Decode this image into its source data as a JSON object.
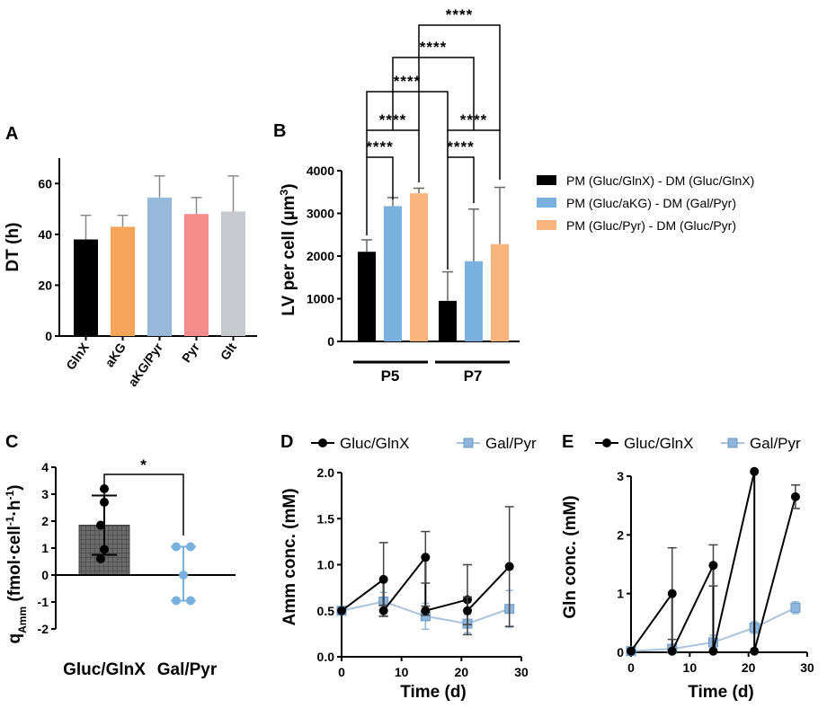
{
  "chart_data": [
    {
      "panel": "A",
      "type": "bar",
      "ylabel": "DT (h)",
      "ylim": [
        0,
        70
      ],
      "yticks": [
        0,
        20,
        40,
        60
      ],
      "categories": [
        "GlnX",
        "aKG",
        "aKG/Pyr",
        "Pyr",
        "Glt"
      ],
      "values": [
        38,
        43,
        54.5,
        48,
        49
      ],
      "errors": [
        9.5,
        4.5,
        8.5,
        6.5,
        14
      ],
      "colors": [
        "#000000",
        "#f5a55a",
        "#97b8d8",
        "#f48c8a",
        "#c6c9ce"
      ]
    },
    {
      "panel": "B",
      "type": "bar",
      "ylabel": "LV per cell (µm³)",
      "ylim": [
        0,
        4000
      ],
      "yticks": [
        0,
        1000,
        2000,
        3000,
        4000
      ],
      "groups": [
        "P5",
        "P7"
      ],
      "series": [
        {
          "name": "PM (Gluc/GlnX) - DM (Gluc/GlnX)",
          "color": "#000000",
          "values": [
            2100,
            950
          ],
          "errors": [
            280,
            680
          ]
        },
        {
          "name": "PM (Gluc/aKG) - DM (Gal/Pyr)",
          "color": "#7ab0dd",
          "values": [
            3170,
            1880
          ],
          "errors": [
            200,
            1220
          ]
        },
        {
          "name": "PM (Gluc/Pyr) - DM (Gluc/Pyr)",
          "color": "#f9b57c",
          "values": [
            3470,
            2280
          ],
          "errors": [
            120,
            1330
          ]
        }
      ],
      "significance": [
        {
          "pair": "P5 black vs P5 blue",
          "label": "****"
        },
        {
          "pair": "P5 black vs P5 orange",
          "label": "****"
        },
        {
          "pair": "P7 black vs P7 blue",
          "label": "****"
        },
        {
          "pair": "P7 black vs P7 orange",
          "label": "****"
        },
        {
          "pair": "P5 black vs P7 black",
          "label": "****"
        },
        {
          "pair": "P5 blue vs P7 blue",
          "label": "****"
        },
        {
          "pair": "P5 orange vs P7 orange",
          "label": "****"
        }
      ]
    },
    {
      "panel": "C",
      "type": "bar",
      "ylabel": "q",
      "ylabel_sub": "Amm",
      "ylabel_units": "(fmol·cell",
      "ylim": [
        -2,
        4
      ],
      "yticks": [
        -2,
        -1,
        0,
        1,
        2,
        3,
        4
      ],
      "categories": [
        "Gluc/GlnX",
        "Gal/Pyr"
      ],
      "means": [
        1.85,
        0.05
      ],
      "errors": [
        1.1,
        1.0
      ],
      "points": [
        [
          3.2,
          2.7,
          1.85,
          0.95,
          0.6
        ],
        [
          1.05,
          1.05,
          0.0,
          -0.95,
          -0.95
        ]
      ],
      "significance": "*"
    },
    {
      "panel": "D",
      "type": "line",
      "xlabel": "Time (d)",
      "ylabel": "Amm conc. (mM)",
      "xlim": [
        0,
        30
      ],
      "ylim": [
        0,
        2
      ],
      "xticks": [
        0,
        10,
        20,
        30
      ],
      "yticks": [
        0,
        0.5,
        1.0,
        1.5,
        2.0
      ],
      "series": [
        {
          "name": "Gluc/GlnX",
          "x": [
            0,
            7,
            7,
            14,
            14,
            21,
            21,
            28
          ],
          "y": [
            0.5,
            0.84,
            0.5,
            1.08,
            0.5,
            0.62,
            0.5,
            0.98
          ],
          "err": [
            0,
            0.4,
            0.06,
            0.28,
            0.05,
            0.38,
            0.15,
            0.65
          ]
        },
        {
          "name": "Gal/Pyr",
          "x": [
            0,
            7,
            14,
            21,
            28
          ],
          "y": [
            0.5,
            0.6,
            0.44,
            0.36,
            0.52
          ],
          "err": [
            0,
            0.1,
            0.14,
            0.1,
            0.2
          ]
        }
      ]
    },
    {
      "panel": "E",
      "type": "line",
      "xlabel": "Time (d)",
      "ylabel": "Gln conc. (mM)",
      "xlim": [
        0,
        30
      ],
      "ylim": [
        0,
        3
      ],
      "xticks": [
        0,
        10,
        20,
        30
      ],
      "yticks": [
        0,
        1,
        2,
        3
      ],
      "series": [
        {
          "name": "Gluc/GlnX",
          "x": [
            0,
            7,
            7,
            14,
            14,
            21,
            21,
            28
          ],
          "y": [
            0.02,
            1.0,
            0.02,
            1.48,
            0.02,
            3.08,
            0.02,
            2.65
          ],
          "err": [
            0,
            0.78,
            0,
            0.35,
            0,
            0,
            0,
            0.2
          ]
        },
        {
          "name": "Gal/Pyr",
          "x": [
            0,
            7,
            14,
            21,
            28
          ],
          "y": [
            0.02,
            0.06,
            0.17,
            0.42,
            0.76
          ],
          "err": [
            0,
            0.05,
            0.12,
            0.1,
            0.1
          ]
        }
      ]
    }
  ],
  "panel_labels": {
    "A": "A",
    "B": "B",
    "C": "C",
    "D": "D",
    "E": "E"
  },
  "text": {
    "a_ylabel": "DT (h)",
    "b_ylabel_main": "LV per cell (µm",
    "b_ylabel_sup": "3",
    "b_ylabel_end": ")",
    "c_ylabel_q": "q",
    "c_ylabel_sub": "Amm",
    "c_ylabel_units": " (fmol·cell",
    "c_ylabel_sup1": "-1",
    "c_ylabel_mid": "·h",
    "c_ylabel_sup2": "-1",
    "c_ylabel_end": ")",
    "d_ylabel": "Amm conc. (mM)",
    "e_ylabel": "Gln conc. (mM)",
    "time_label": "Time (d)",
    "legend_gluc": "Gluc/GlnX",
    "legend_gal": "Gal/Pyr",
    "star4": "****",
    "star1": "*",
    "p5": "P5",
    "p7": "P7"
  }
}
